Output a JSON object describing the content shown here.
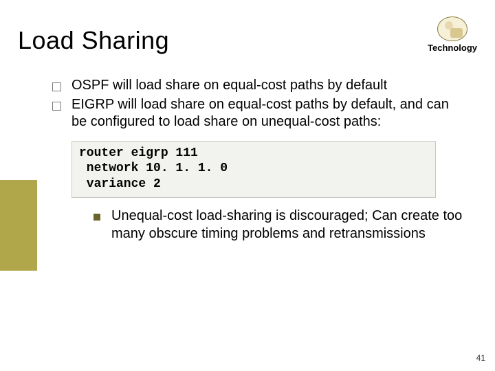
{
  "slide": {
    "title": "Load Sharing",
    "tech_label": "Technology",
    "bullets": [
      "OSPF will load share on equal-cost paths by default",
      "EIGRP will load share on equal-cost paths by default, and can be configured to load share on unequal-cost paths:"
    ],
    "code": "router eigrp 111\n network 10. 1. 1. 0\n variance 2",
    "sub_bullet": "Unequal-cost load-sharing is discouraged; Can create too many obscure timing problems and retransmissions",
    "page_number": "41"
  },
  "style": {
    "background_color": "#ffffff",
    "sidebar_color": "#b0a64a",
    "title_fontsize": 36,
    "body_fontsize": 20,
    "code_fontsize": 18,
    "bullet_square_border": "#7a7a7a",
    "sub_bullet_fill": "#6a642a",
    "code_bg": "#f2f2ee",
    "code_border": "#c8c8c0",
    "tech_icon_border": "#8a7a3a",
    "tech_icon_bg": "#f6f0d8"
  }
}
